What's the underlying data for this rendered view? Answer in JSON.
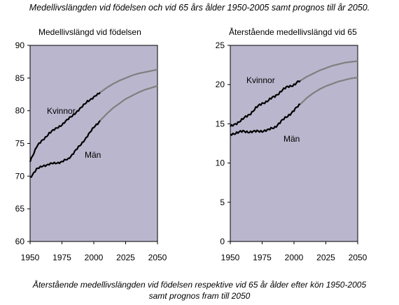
{
  "title": "Medellivslängden vid födelsen och vid 65 års ålder 1950-2005 samt prognos till år 2050.",
  "caption": {
    "line1": "Återstående medellivslängden vid födelsen respektive vid 65 år ålder efter kön 1950-2005",
    "line2": "samt prognos fram till 2050"
  },
  "colors": {
    "plot_bg": "#B9B6CD",
    "historical": "#000000",
    "forecast": "#7F7F7F"
  },
  "chart_data": [
    {
      "type": "line",
      "title": "Medellivslängd vid födelsen",
      "xlabel": "",
      "ylabel": "",
      "xlim": [
        1950,
        2050
      ],
      "ylim": [
        60,
        90
      ],
      "xticks": [
        1950,
        1975,
        2000,
        2025,
        2050
      ],
      "yticks": [
        60,
        65,
        70,
        75,
        80,
        85,
        90
      ],
      "grid": false,
      "forecast_from": 2005,
      "series": [
        {
          "name": "Kvinnor",
          "x": [
            1950,
            1955,
            1960,
            1965,
            1970,
            1975,
            1980,
            1985,
            1990,
            1995,
            2000,
            2005,
            2010,
            2015,
            2020,
            2025,
            2030,
            2035,
            2040,
            2045,
            2050
          ],
          "values": [
            72.3,
            74.5,
            75.5,
            76.6,
            77.2,
            77.9,
            78.7,
            79.6,
            80.4,
            81.5,
            82.0,
            82.8,
            83.5,
            84.1,
            84.6,
            85.0,
            85.4,
            85.7,
            85.9,
            86.1,
            86.3
          ]
        },
        {
          "name": "Män",
          "x": [
            1950,
            1955,
            1960,
            1965,
            1970,
            1975,
            1980,
            1985,
            1990,
            1995,
            2000,
            2005,
            2010,
            2015,
            2020,
            2025,
            2030,
            2035,
            2040,
            2045,
            2050
          ],
          "values": [
            69.8,
            71.0,
            71.6,
            71.8,
            72.0,
            72.2,
            72.6,
            73.8,
            74.8,
            76.2,
            77.4,
            78.5,
            79.5,
            80.4,
            81.1,
            81.8,
            82.3,
            82.8,
            83.2,
            83.5,
            83.8
          ]
        }
      ]
    },
    {
      "type": "line",
      "title": "Återstående medellivslängd vid 65",
      "xlabel": "",
      "ylabel": "",
      "xlim": [
        1950,
        2050
      ],
      "ylim": [
        0,
        25
      ],
      "xticks": [
        1950,
        1975,
        2000,
        2025,
        2050
      ],
      "yticks": [
        0,
        5,
        10,
        15,
        20,
        25
      ],
      "grid": false,
      "forecast_from": 2005,
      "series": [
        {
          "name": "Kvinnor",
          "x": [
            1950,
            1955,
            1960,
            1965,
            1970,
            1975,
            1980,
            1985,
            1990,
            1995,
            2000,
            2005,
            2010,
            2015,
            2020,
            2025,
            2030,
            2035,
            2040,
            2045,
            2050
          ],
          "values": [
            14.6,
            15.1,
            15.6,
            16.2,
            17.0,
            17.6,
            18.0,
            18.5,
            19.2,
            19.7,
            20.0,
            20.5,
            21.0,
            21.4,
            21.8,
            22.1,
            22.4,
            22.6,
            22.8,
            22.9,
            23.0
          ]
        },
        {
          "name": "Män",
          "x": [
            1950,
            1955,
            1960,
            1965,
            1970,
            1975,
            1980,
            1985,
            1990,
            1995,
            2000,
            2005,
            2010,
            2015,
            2020,
            2025,
            2030,
            2035,
            2040,
            2045,
            2050
          ],
          "values": [
            13.6,
            13.9,
            14.0,
            14.0,
            14.0,
            14.1,
            14.2,
            14.6,
            15.3,
            16.0,
            16.7,
            17.5,
            18.3,
            18.9,
            19.4,
            19.8,
            20.1,
            20.4,
            20.6,
            20.8,
            20.9
          ]
        }
      ]
    }
  ]
}
